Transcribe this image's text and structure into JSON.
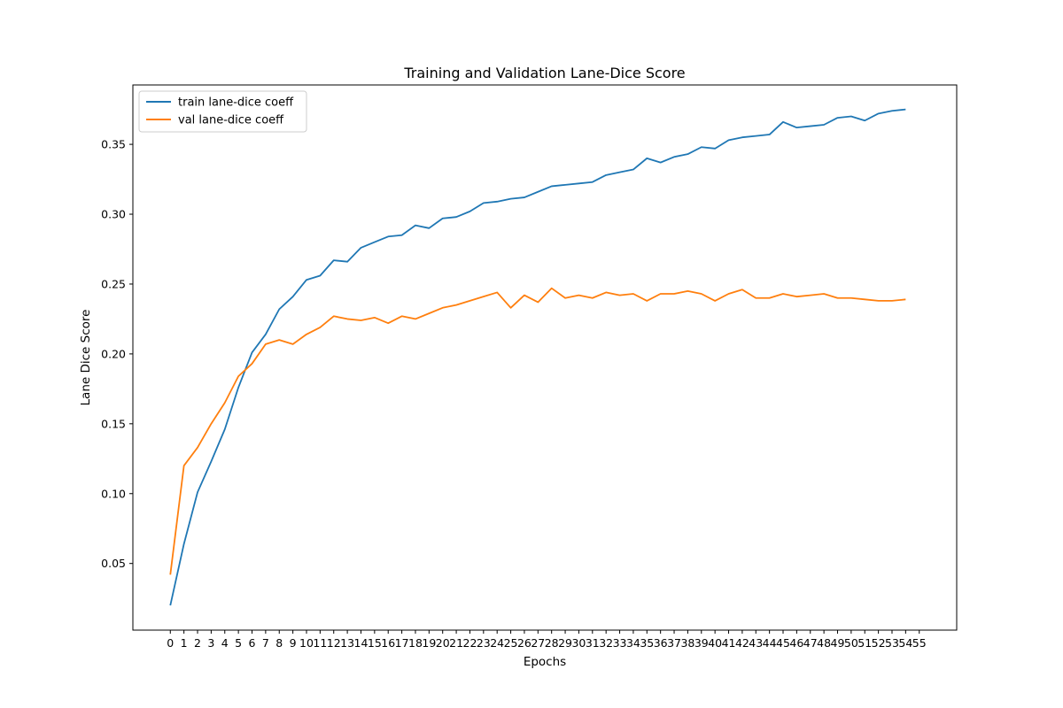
{
  "chart_data": {
    "type": "line",
    "title": "Training and Validation Lane-Dice Score",
    "xlabel": "Epochs",
    "ylabel": "Lane Dice Score",
    "xticks": [
      0,
      1,
      2,
      3,
      4,
      5,
      6,
      7,
      8,
      9,
      10,
      11,
      12,
      13,
      14,
      15,
      16,
      17,
      18,
      19,
      20,
      21,
      22,
      23,
      24,
      25,
      26,
      27,
      28,
      29,
      30,
      31,
      32,
      33,
      34,
      35,
      36,
      37,
      38,
      39,
      40,
      41,
      42,
      43,
      44,
      45,
      46,
      47,
      48,
      49,
      50,
      51,
      52,
      53,
      54,
      55
    ],
    "yticks": [
      "0.05",
      "0.10",
      "0.15",
      "0.20",
      "0.25",
      "0.30",
      "0.35"
    ],
    "xlim": [
      -2.75,
      57.75
    ],
    "ylim": [
      0.0023,
      0.3925
    ],
    "grid": false,
    "legend_position": "upper-left",
    "series": [
      {
        "name": "train lane-dice coeff",
        "color": "#1f77b4",
        "x": [
          0,
          1,
          2,
          3,
          4,
          5,
          6,
          7,
          8,
          9,
          10,
          11,
          12,
          13,
          14,
          15,
          16,
          17,
          18,
          19,
          20,
          21,
          22,
          23,
          24,
          25,
          26,
          27,
          28,
          29,
          30,
          31,
          32,
          33,
          34,
          35,
          36,
          37,
          38,
          39,
          40,
          41,
          42,
          43,
          44,
          45,
          46,
          47,
          48,
          49,
          50,
          51,
          52,
          53,
          54
        ],
        "values": [
          0.02,
          0.064,
          0.101,
          0.123,
          0.146,
          0.176,
          0.201,
          0.214,
          0.232,
          0.241,
          0.253,
          0.256,
          0.267,
          0.266,
          0.276,
          0.28,
          0.284,
          0.285,
          0.292,
          0.29,
          0.297,
          0.298,
          0.302,
          0.308,
          0.309,
          0.311,
          0.312,
          0.316,
          0.32,
          0.321,
          0.322,
          0.323,
          0.328,
          0.33,
          0.332,
          0.34,
          0.337,
          0.341,
          0.343,
          0.348,
          0.347,
          0.353,
          0.355,
          0.356,
          0.357,
          0.366,
          0.362,
          0.363,
          0.364,
          0.369,
          0.37,
          0.367,
          0.372,
          0.374,
          0.375
        ]
      },
      {
        "name": "val lane-dice coeff",
        "color": "#ff7f0e",
        "x": [
          0,
          1,
          2,
          3,
          4,
          5,
          6,
          7,
          8,
          9,
          10,
          11,
          12,
          13,
          14,
          15,
          16,
          17,
          18,
          19,
          20,
          21,
          22,
          23,
          24,
          25,
          26,
          27,
          28,
          29,
          30,
          31,
          32,
          33,
          34,
          35,
          36,
          37,
          38,
          39,
          40,
          41,
          42,
          43,
          44,
          45,
          46,
          47,
          48,
          49,
          50,
          51,
          52,
          53,
          54
        ],
        "values": [
          0.042,
          0.12,
          0.133,
          0.15,
          0.165,
          0.184,
          0.193,
          0.207,
          0.21,
          0.207,
          0.214,
          0.219,
          0.227,
          0.225,
          0.224,
          0.226,
          0.222,
          0.227,
          0.225,
          0.229,
          0.233,
          0.235,
          0.238,
          0.241,
          0.244,
          0.233,
          0.242,
          0.237,
          0.247,
          0.24,
          0.242,
          0.24,
          0.244,
          0.242,
          0.243,
          0.238,
          0.243,
          0.243,
          0.245,
          0.243,
          0.238,
          0.243,
          0.246,
          0.24,
          0.24,
          0.243,
          0.241,
          0.242,
          0.243,
          0.24,
          0.24,
          0.239,
          0.238,
          0.238,
          0.239
        ]
      }
    ]
  }
}
